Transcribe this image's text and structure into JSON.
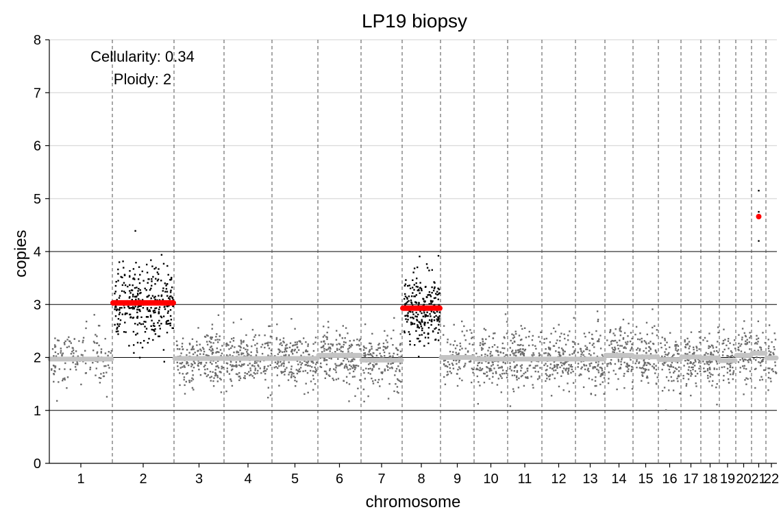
{
  "chart_data": {
    "type": "scatter",
    "title": "LP19 biopsy",
    "xlabel": "chromosome",
    "ylabel": "copies",
    "ylim": [
      0,
      8
    ],
    "yticks": [
      "0",
      "1",
      "2",
      "3",
      "4",
      "5",
      "6",
      "7",
      "8"
    ],
    "annotations": [
      "Cellularity: 0.34",
      "Ploidy: 2"
    ],
    "cellularity": 0.34,
    "ploidy": 2,
    "grid": "horizontal lines at each integer copy number; dashed vertical chromosome boundaries",
    "colors": {
      "normal_points": "#6b6b6b",
      "gained_points": "#000000",
      "normal_segment": "#c4c4c4",
      "gained_segment": "#ff0000",
      "gridline": "#d9d9d9",
      "baseline": "#000000"
    },
    "chromosomes": [
      {
        "label": "1",
        "segment_copies": 1.97,
        "spread": 0.33,
        "n_points": 140,
        "gained": false
      },
      {
        "label": "2",
        "segment_copies": 3.03,
        "spread": 0.42,
        "n_points": 330,
        "gained": true
      },
      {
        "label": "3",
        "segment_copies": 1.98,
        "spread": 0.3,
        "n_points": 210,
        "gained": false
      },
      {
        "label": "4",
        "segment_copies": 1.98,
        "spread": 0.3,
        "n_points": 200,
        "gained": false
      },
      {
        "label": "5",
        "segment_copies": 1.98,
        "spread": 0.3,
        "n_points": 190,
        "gained": false
      },
      {
        "label": "6",
        "segment_copies": 2.04,
        "spread": 0.3,
        "n_points": 180,
        "gained": false
      },
      {
        "label": "7",
        "segment_copies": 1.95,
        "spread": 0.3,
        "n_points": 160,
        "gained": false
      },
      {
        "label": "8",
        "segment_copies": 2.93,
        "spread": 0.42,
        "n_points": 240,
        "gained": true
      },
      {
        "label": "9",
        "segment_copies": 2.0,
        "spread": 0.33,
        "n_points": 90,
        "gained": false
      },
      {
        "label": "10",
        "segment_copies": 1.97,
        "spread": 0.32,
        "n_points": 140,
        "gained": false
      },
      {
        "label": "11",
        "segment_copies": 1.97,
        "spread": 0.32,
        "n_points": 140,
        "gained": false
      },
      {
        "label": "12",
        "segment_copies": 1.97,
        "spread": 0.32,
        "n_points": 140,
        "gained": false
      },
      {
        "label": "13",
        "segment_copies": 1.97,
        "spread": 0.33,
        "n_points": 110,
        "gained": false
      },
      {
        "label": "14",
        "segment_copies": 2.04,
        "spread": 0.33,
        "n_points": 110,
        "gained": false
      },
      {
        "label": "15",
        "segment_copies": 2.01,
        "spread": 0.33,
        "n_points": 100,
        "gained": false
      },
      {
        "label": "16",
        "segment_copies": 1.96,
        "spread": 0.35,
        "n_points": 80,
        "gained": false
      },
      {
        "label": "17",
        "segment_copies": 2.01,
        "spread": 0.33,
        "n_points": 80,
        "gained": false
      },
      {
        "label": "18",
        "segment_copies": 1.99,
        "spread": 0.33,
        "n_points": 70,
        "gained": false
      },
      {
        "label": "19",
        "segment_copies": 1.94,
        "spread": 0.32,
        "n_points": 50,
        "gained": false
      },
      {
        "label": "20",
        "segment_copies": 2.04,
        "spread": 0.33,
        "n_points": 60,
        "gained": false
      },
      {
        "label": "21",
        "segment_copies": 2.08,
        "spread": 0.33,
        "n_points": 40,
        "gained": false
      },
      {
        "label": "22",
        "segment_copies": 1.99,
        "spread": 0.33,
        "n_points": 40,
        "gained": false
      }
    ],
    "extra_points": [
      {
        "chromosome": "21",
        "copies": 4.66,
        "color": "#ff0000"
      },
      {
        "chromosome": "21",
        "copies": 5.15,
        "color": "#000000"
      },
      {
        "chromosome": "21",
        "copies": 4.75,
        "color": "#000000"
      },
      {
        "chromosome": "21",
        "copies": 4.2,
        "color": "#000000"
      }
    ]
  }
}
